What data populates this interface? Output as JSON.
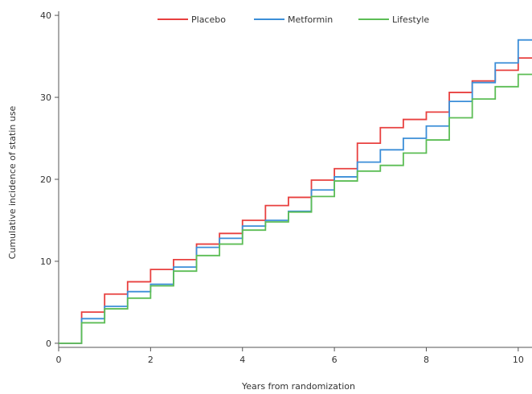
{
  "chart_data": {
    "type": "line",
    "step": true,
    "xlabel": "Years from randomization",
    "ylabel": "Cumulative incidence of statin use",
    "xlim": [
      0,
      10.3
    ],
    "ylim": [
      -0.5,
      40.5
    ],
    "xticks": [
      0,
      2,
      4,
      6,
      8,
      10
    ],
    "yticks": [
      0,
      10,
      20,
      30,
      40
    ],
    "grid": false,
    "legend_position": "top-center",
    "series": [
      {
        "name": "Placebo",
        "color": "#e8403f",
        "x": [
          0,
          0.5,
          1,
          1.5,
          2,
          2.5,
          3,
          3.5,
          4,
          4.5,
          5,
          5.5,
          6,
          6.5,
          7,
          7.5,
          8,
          8.5,
          9,
          9.5,
          10,
          10.3
        ],
        "y": [
          0,
          3.8,
          6.0,
          7.5,
          9.0,
          10.2,
          12.1,
          13.4,
          15.0,
          16.8,
          17.8,
          19.9,
          21.3,
          24.4,
          26.3,
          27.3,
          28.2,
          30.6,
          32.0,
          33.3,
          34.8,
          34.8
        ]
      },
      {
        "name": "Metformin",
        "color": "#3b8ed8",
        "x": [
          0,
          0.5,
          1,
          1.5,
          2,
          2.5,
          3,
          3.5,
          4,
          4.5,
          5,
          5.5,
          6,
          6.5,
          7,
          7.5,
          8,
          8.5,
          9,
          9.5,
          10,
          10.3
        ],
        "y": [
          0,
          3.0,
          4.5,
          6.3,
          7.2,
          9.3,
          11.7,
          12.8,
          14.3,
          15.0,
          16.1,
          18.7,
          20.3,
          22.1,
          23.6,
          25.0,
          26.5,
          29.5,
          31.8,
          34.2,
          37.0,
          37.0
        ]
      },
      {
        "name": "Lifestyle",
        "color": "#5cbd55",
        "x": [
          0,
          0.5,
          1,
          1.5,
          2,
          2.5,
          3,
          3.5,
          4,
          4.5,
          5,
          5.5,
          6,
          6.5,
          7,
          7.5,
          8,
          8.5,
          9,
          9.5,
          10,
          10.3
        ],
        "y": [
          0,
          2.5,
          4.2,
          5.5,
          7.0,
          8.8,
          10.7,
          12.1,
          13.8,
          14.8,
          16.0,
          17.9,
          19.8,
          21.0,
          21.7,
          23.2,
          24.8,
          27.5,
          29.8,
          31.3,
          32.8,
          32.8
        ]
      }
    ]
  }
}
